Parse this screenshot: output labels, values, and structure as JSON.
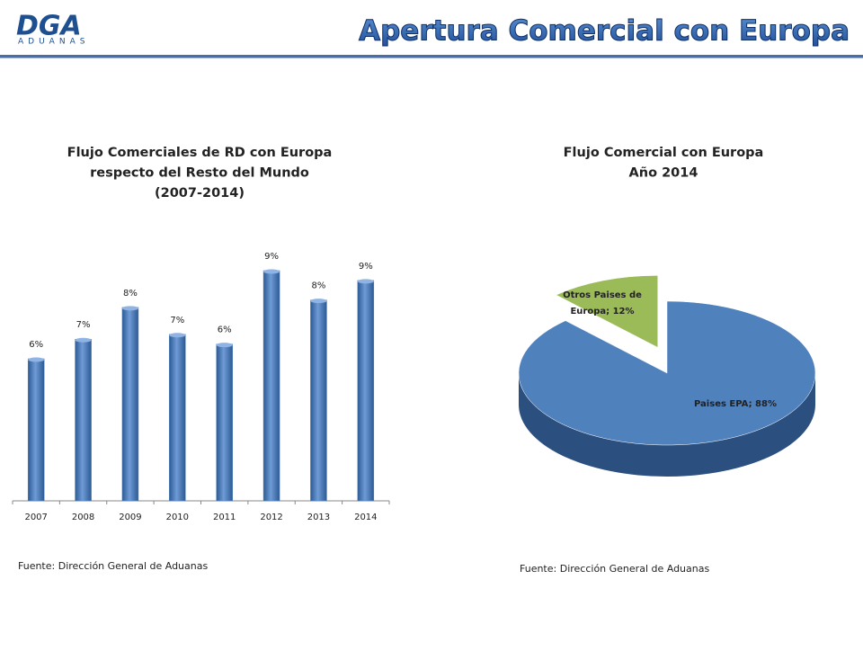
{
  "header": {
    "logo": "DGA",
    "logo_sub": "ADUANAS",
    "title": "Apertura Comercial con Europa"
  },
  "chart_data": [
    {
      "type": "bar",
      "title": [
        "Flujo Comerciales  de RD con Europa",
        "respecto del Resto del Mundo",
        "(2007-2014)"
      ],
      "categories": [
        "2007",
        "2008",
        "2009",
        "2010",
        "2011",
        "2012",
        "2013",
        "2014"
      ],
      "values": [
        5.8,
        6.6,
        7.9,
        6.8,
        6.4,
        9.4,
        8.2,
        9.0
      ],
      "value_labels": [
        "6%",
        "7%",
        "8%",
        "7%",
        "6%",
        "9%",
        "8%",
        "9%"
      ],
      "color": "#4f81bd",
      "ylim": [
        0,
        10.5
      ],
      "source": "Fuente: Dirección General de Aduanas"
    },
    {
      "type": "pie",
      "title": [
        "Flujo Comercial con Europa",
        "Año 2014"
      ],
      "values": [
        88,
        12
      ],
      "value_labels": [
        "Paises EPA; 88%",
        "Otros Paises de Europa; 12%"
      ],
      "colors": [
        "#4f81bd",
        "#9bbb59"
      ],
      "source": "Fuente: Dirección General de Aduanas"
    }
  ]
}
